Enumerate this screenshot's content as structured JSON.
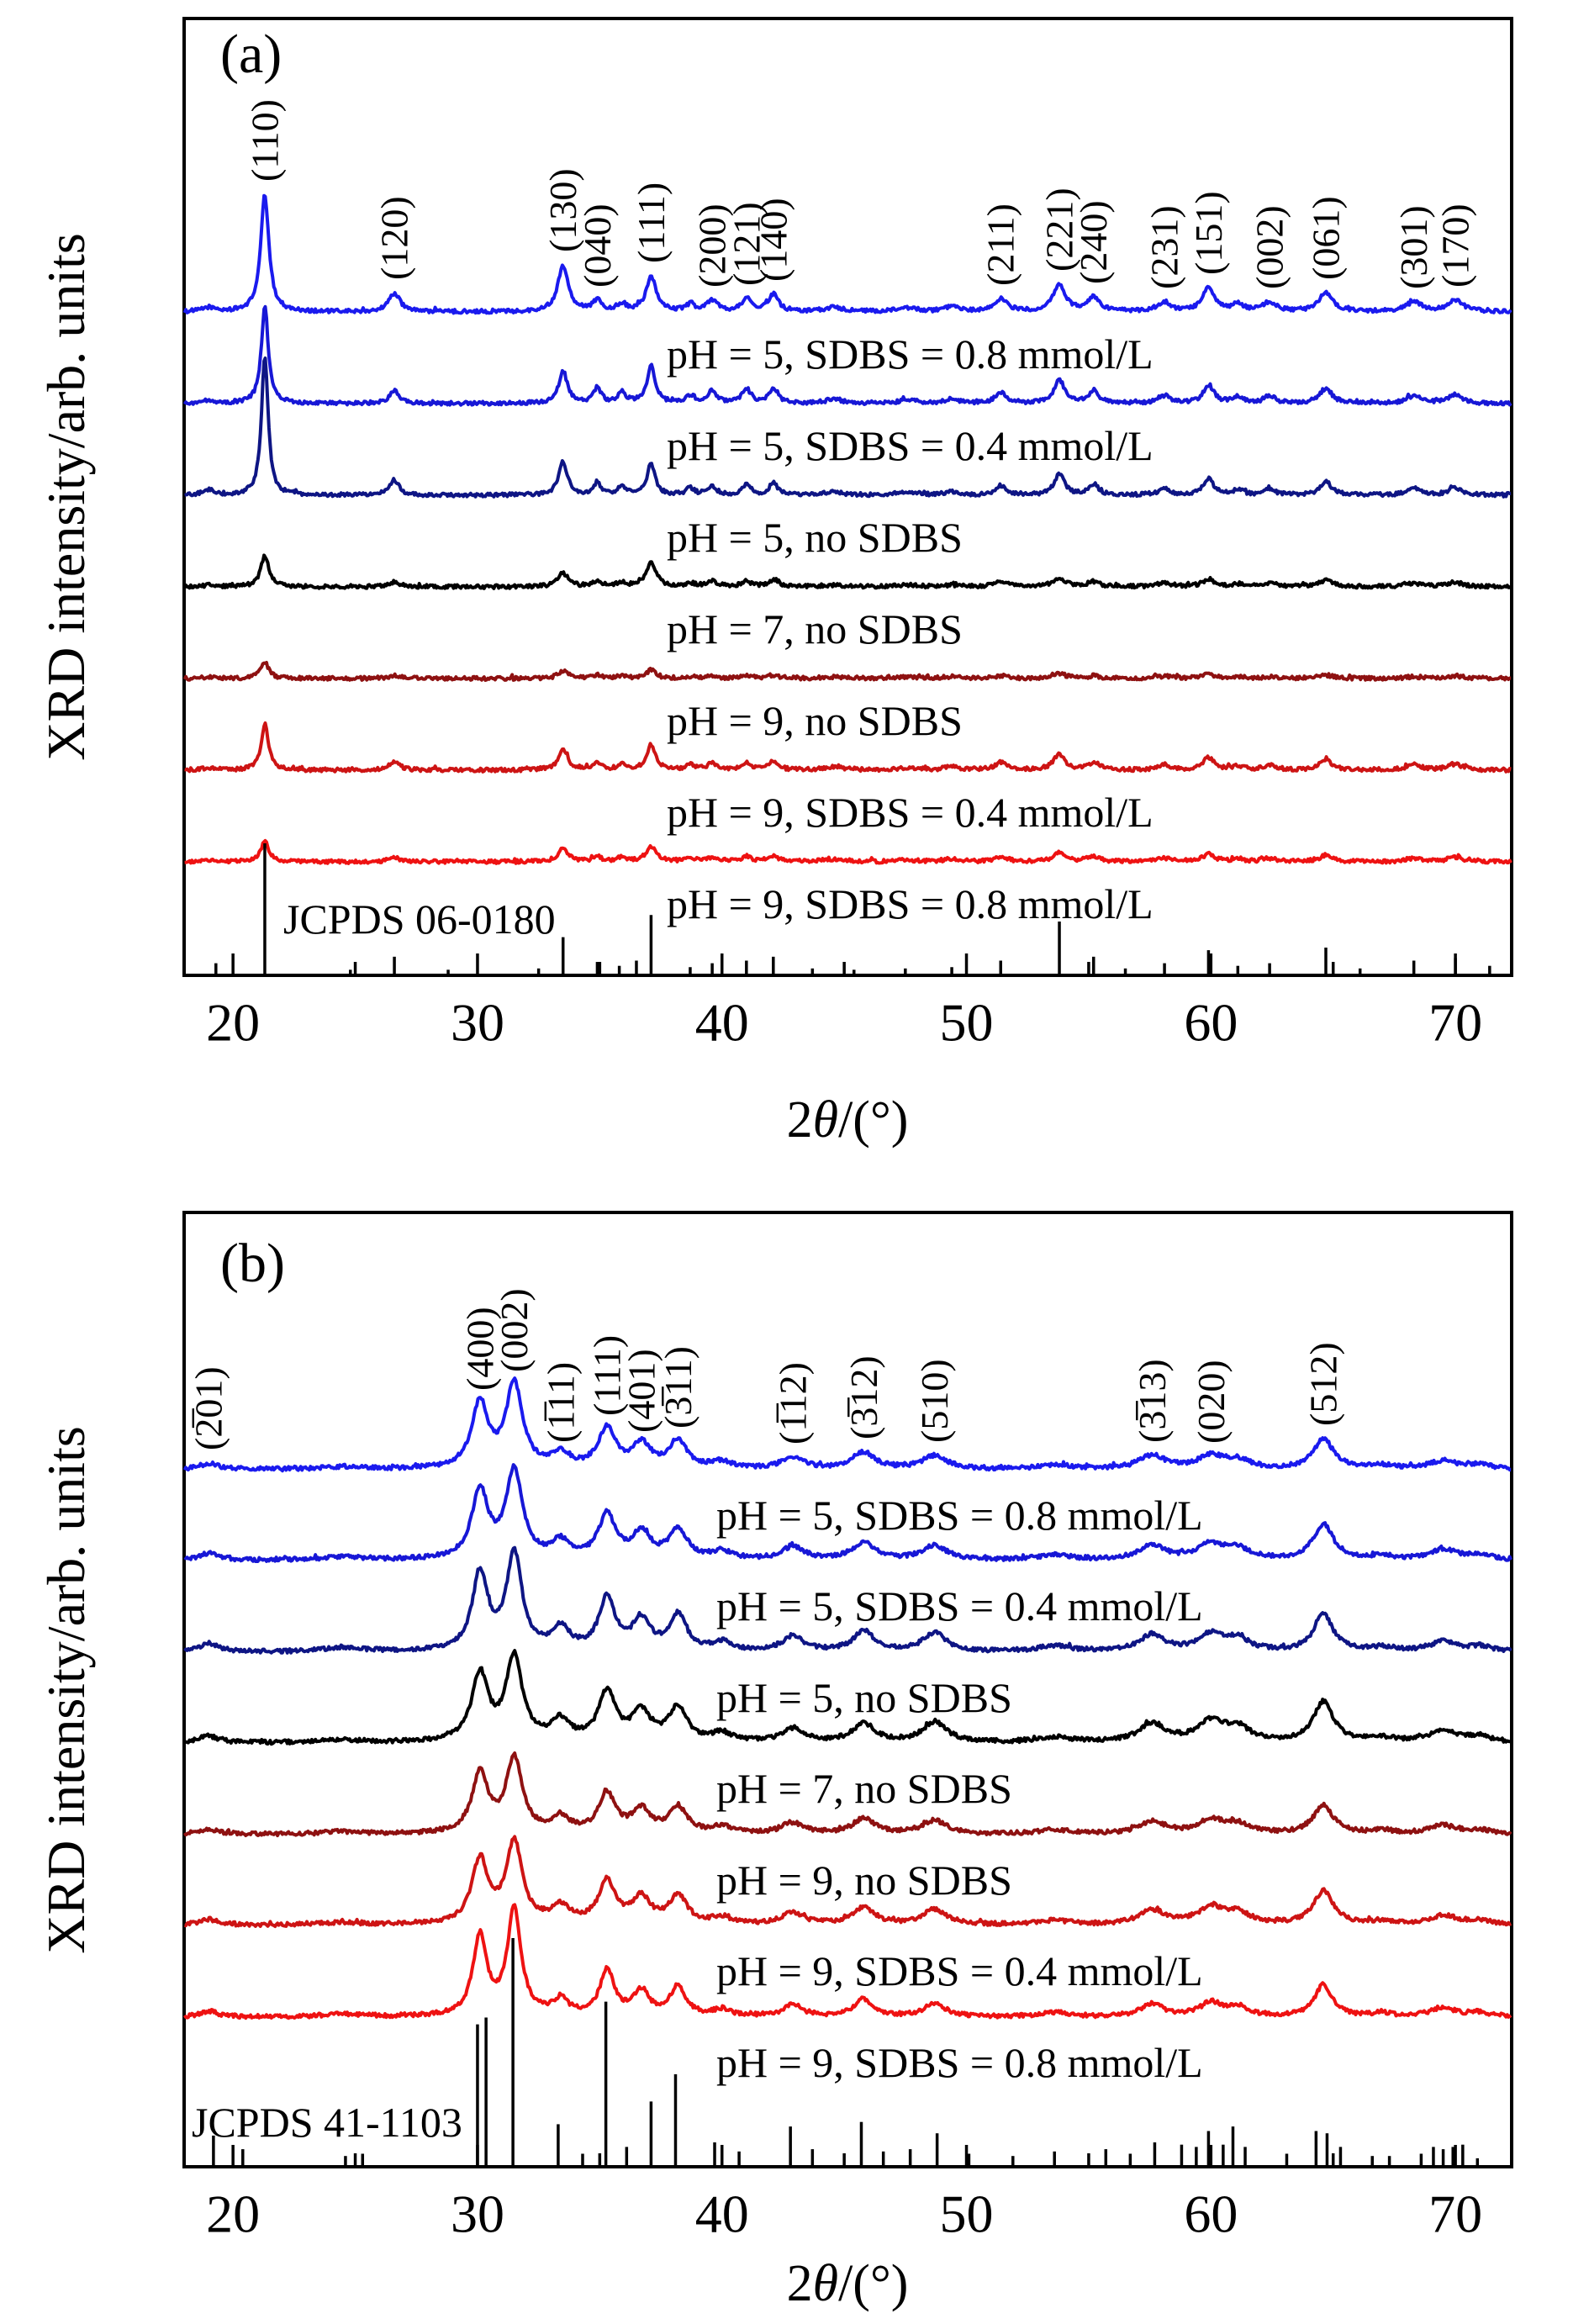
{
  "figure": {
    "ylabel": "XRD intensity/arb. units",
    "xlabel": "2θ/(°)",
    "xlabel_parts": {
      "pre": "2",
      "theta": "θ",
      "post": "/(°)"
    }
  },
  "chart_data": [
    {
      "type": "line",
      "panel_label": "(a)",
      "jcpds_label": "JCPDS 06-0180",
      "xlabel": "2θ/(°)",
      "ylabel": "XRD intensity/arb. units",
      "xlim": [
        18,
        72.3
      ],
      "x_ticks": [
        20,
        30,
        40,
        50,
        60,
        70
      ],
      "x_minor_ticks": [
        25,
        35,
        45,
        55,
        65
      ],
      "legend_position": "labels-under-curves",
      "grid": false,
      "peaks": [
        {
          "two_theta": 19.0,
          "hkl": "",
          "w": 0.3
        },
        {
          "two_theta": 21.3,
          "hkl": "(110)",
          "w": 0.2
        },
        {
          "two_theta": 26.6,
          "hkl": "(120)",
          "w": 0.28
        },
        {
          "two_theta": 33.5,
          "hkl": "(130)",
          "w": 0.26
        },
        {
          "two_theta": 34.9,
          "hkl": "(040)",
          "w": 0.22
        },
        {
          "two_theta": 35.9,
          "hkl": "",
          "w": 0.22
        },
        {
          "two_theta": 37.1,
          "hkl": "(111)",
          "w": 0.24
        },
        {
          "two_theta": 38.7,
          "hkl": "",
          "w": 0.25
        },
        {
          "two_theta": 39.6,
          "hkl": "(200)",
          "w": 0.25
        },
        {
          "two_theta": 41.0,
          "hkl": "(121)",
          "w": 0.25
        },
        {
          "two_theta": 42.1,
          "hkl": "(140)",
          "w": 0.25
        },
        {
          "two_theta": 44.6,
          "hkl": "",
          "w": 0.5
        },
        {
          "two_theta": 47.6,
          "hkl": "",
          "w": 0.5
        },
        {
          "two_theta": 49.4,
          "hkl": "",
          "w": 0.4
        },
        {
          "two_theta": 51.4,
          "hkl": "(211)",
          "w": 0.32
        },
        {
          "two_theta": 53.8,
          "hkl": "(221)",
          "w": 0.3
        },
        {
          "two_theta": 55.2,
          "hkl": "(240)",
          "w": 0.3
        },
        {
          "two_theta": 58.1,
          "hkl": "(231)",
          "w": 0.32
        },
        {
          "two_theta": 59.9,
          "hkl": "(151)",
          "w": 0.3
        },
        {
          "two_theta": 61.1,
          "hkl": "",
          "w": 0.3
        },
        {
          "two_theta": 62.4,
          "hkl": "(002)",
          "w": 0.32
        },
        {
          "two_theta": 64.7,
          "hkl": "(061)",
          "w": 0.35
        },
        {
          "two_theta": 68.3,
          "hkl": "(301)",
          "w": 0.4
        },
        {
          "two_theta": 70.0,
          "hkl": "(170)",
          "w": 0.4
        }
      ],
      "series": [
        {
          "label": "pH = 5, SDBS = 0.8 mmol/L",
          "color": "#1a1aee",
          "heights": [
            5,
            139,
            22,
            55,
            13,
            9,
            42,
            8,
            13,
            15,
            20,
            5,
            4,
            5,
            15,
            32,
            17,
            11,
            28,
            8,
            11,
            22,
            11,
            13
          ]
        },
        {
          "label": "pH = 5, SDBS = 0.4 mmol/L",
          "color": "#1717d6",
          "heights": [
            4,
            115,
            15,
            38,
            18,
            14,
            44,
            9,
            15,
            17,
            18,
            5,
            4,
            5,
            13,
            28,
            15,
            9,
            22,
            8,
            9,
            18,
            9,
            11
          ]
        },
        {
          "label": "pH = 5, no SDBS",
          "color": "#0e1584",
          "heights": [
            6,
            167,
            18,
            40,
            15,
            11,
            38,
            8,
            11,
            13,
            15,
            4,
            4,
            4,
            11,
            26,
            13,
            9,
            20,
            6,
            7,
            16,
            8,
            9
          ]
        },
        {
          "label": "pH = 7, no SDBS",
          "color": "#000000",
          "heights": [
            2,
            37,
            6,
            16,
            6,
            5,
            30,
            4,
            6,
            6,
            8,
            2,
            2,
            2,
            6,
            11,
            6,
            5,
            9,
            3,
            4,
            8,
            4,
            5
          ]
        },
        {
          "label": "pH = 9, no SDBS",
          "color": "#8e1111",
          "heights": [
            2,
            19,
            4,
            8,
            4,
            3,
            10,
            2,
            3,
            3,
            4,
            2,
            2,
            2,
            3,
            6,
            3,
            3,
            5,
            2,
            2,
            4,
            2,
            3
          ]
        },
        {
          "label": "pH = 9, SDBS = 0.4 mmol/L",
          "color": "#cd1414",
          "heights": [
            3,
            55,
            10,
            24,
            9,
            7,
            30,
            6,
            8,
            9,
            11,
            4,
            3,
            4,
            9,
            19,
            9,
            7,
            15,
            5,
            6,
            12,
            6,
            7
          ]
        },
        {
          "label": "pH = 9, SDBS = 0.8 mmol/L",
          "color": "#ee1212",
          "heights": [
            2,
            24,
            5,
            15,
            6,
            5,
            18,
            4,
            5,
            6,
            7,
            3,
            2,
            3,
            6,
            11,
            6,
            4,
            9,
            3,
            4,
            7,
            4,
            5
          ]
        }
      ],
      "jcpds_sticks": [
        [
          19.3,
          8
        ],
        [
          21.3,
          100
        ],
        [
          24.8,
          3
        ],
        [
          26.6,
          13
        ],
        [
          28.8,
          3
        ],
        [
          32.5,
          4
        ],
        [
          33.5,
          28
        ],
        [
          34.9,
          9
        ],
        [
          35.8,
          6
        ],
        [
          36.5,
          10
        ],
        [
          37.1,
          45
        ],
        [
          38.7,
          5
        ],
        [
          39.6,
          8
        ],
        [
          41.0,
          10
        ],
        [
          42.1,
          13
        ],
        [
          43.7,
          4
        ],
        [
          45.4,
          3
        ],
        [
          47.5,
          4
        ],
        [
          49.4,
          5
        ],
        [
          51.4,
          10
        ],
        [
          53.8,
          40
        ],
        [
          55.2,
          13
        ],
        [
          56.5,
          4
        ],
        [
          58.1,
          8
        ],
        [
          59.9,
          18
        ],
        [
          61.1,
          6
        ],
        [
          62.4,
          8
        ],
        [
          64.7,
          20
        ],
        [
          66.1,
          4
        ],
        [
          68.3,
          10
        ],
        [
          70.0,
          12
        ],
        [
          71.4,
          6
        ]
      ]
    },
    {
      "type": "line",
      "panel_label": "(b)",
      "jcpds_label": "JCPDS 41-1103",
      "xlabel": "2θ/(°)",
      "ylabel": "XRD intensity/arb. units",
      "xlim": [
        18,
        72.3
      ],
      "x_ticks": [
        20,
        30,
        40,
        50,
        60,
        70
      ],
      "x_minor_ticks": [
        25,
        35,
        45,
        55,
        65
      ],
      "legend_position": "labels-under-curves",
      "grid": false,
      "peaks": [
        {
          "two_theta": 19.0,
          "hkl": "(2̅01)",
          "w": 0.5
        },
        {
          "two_theta": 24.5,
          "hkl": "",
          "w": 1.0
        },
        {
          "two_theta": 30.1,
          "hkl": "(400)",
          "w": 0.4
        },
        {
          "two_theta": 31.5,
          "hkl": "(002)",
          "w": 0.4
        },
        {
          "two_theta": 33.4,
          "hkl": "(1̅11)",
          "w": 0.45
        },
        {
          "two_theta": 35.3,
          "hkl": "(111)",
          "w": 0.42
        },
        {
          "two_theta": 36.7,
          "hkl": "(401)",
          "w": 0.45
        },
        {
          "two_theta": 38.2,
          "hkl": "(3̅11)",
          "w": 0.45
        },
        {
          "two_theta": 40.0,
          "hkl": "",
          "w": 0.5
        },
        {
          "two_theta": 42.9,
          "hkl": "(1̅12)",
          "w": 0.55
        },
        {
          "two_theta": 45.8,
          "hkl": "(3̅12)",
          "w": 0.55
        },
        {
          "two_theta": 48.7,
          "hkl": "(510)",
          "w": 0.6
        },
        {
          "two_theta": 53.6,
          "hkl": "",
          "w": 0.8
        },
        {
          "two_theta": 57.6,
          "hkl": "(3̅13)",
          "w": 0.65
        },
        {
          "two_theta": 60.0,
          "hkl": "(020)",
          "w": 0.65
        },
        {
          "two_theta": 61.1,
          "hkl": "",
          "w": 0.6
        },
        {
          "two_theta": 64.6,
          "hkl": "(512)",
          "w": 0.5
        },
        {
          "two_theta": 67.0,
          "hkl": "",
          "w": 0.6
        },
        {
          "two_theta": 69.5,
          "hkl": "",
          "w": 0.7
        },
        {
          "two_theta": 71.0,
          "hkl": "",
          "w": 0.6
        }
      ],
      "series": [
        {
          "label": "pH = 5, SDBS = 0.8 mmol/L",
          "color": "#1a1aee",
          "heights": [
            7,
            3,
            78,
            100,
            16,
            48,
            28,
            33,
            8,
            14,
            20,
            16,
            5,
            16,
            15,
            10,
            36,
            4,
            10,
            5
          ]
        },
        {
          "label": "pH = 5, SDBS = 0.4 mmol/L",
          "color": "#1717d6",
          "heights": [
            8,
            4,
            82,
            105,
            20,
            52,
            30,
            35,
            9,
            15,
            21,
            17,
            6,
            17,
            18,
            12,
            42,
            4,
            12,
            6
          ]
        },
        {
          "label": "pH = 5, no SDBS",
          "color": "#0e1584",
          "heights": [
            10,
            5,
            92,
            115,
            26,
            62,
            36,
            42,
            10,
            18,
            24,
            22,
            7,
            20,
            20,
            14,
            44,
            5,
            12,
            6
          ]
        },
        {
          "label": "pH = 7, no SDBS",
          "color": "#000000",
          "heights": [
            8,
            3,
            80,
            100,
            24,
            58,
            34,
            40,
            10,
            16,
            22,
            24,
            6,
            22,
            24,
            16,
            48,
            5,
            14,
            7
          ]
        },
        {
          "label": "pH = 9, no SDBS",
          "color": "#8e1111",
          "heights": [
            6,
            3,
            70,
            88,
            18,
            46,
            27,
            31,
            8,
            13,
            18,
            16,
            5,
            15,
            16,
            11,
            34,
            4,
            10,
            5
          ]
        },
        {
          "label": "pH = 9, SDBS = 0.4 mmol/L",
          "color": "#cd1414",
          "heights": [
            7,
            3,
            76,
            96,
            20,
            50,
            30,
            33,
            8,
            14,
            20,
            18,
            5,
            17,
            20,
            13,
            40,
            4,
            11,
            5
          ]
        },
        {
          "label": "pH = 9, SDBS = 0.8 mmol/L",
          "color": "#ee1212",
          "heights": [
            7,
            3,
            95,
            125,
            18,
            54,
            29,
            35,
            8,
            14,
            20,
            16,
            5,
            15,
            16,
            11,
            38,
            4,
            11,
            5
          ]
        }
      ],
      "jcpds_sticks": [
        [
          19.2,
          13
        ],
        [
          20.4,
          7
        ],
        [
          24.6,
          4
        ],
        [
          25.3,
          5
        ],
        [
          30.0,
          62
        ],
        [
          30.35,
          65
        ],
        [
          31.45,
          100
        ],
        [
          33.3,
          18
        ],
        [
          34.3,
          5
        ],
        [
          35.25,
          72
        ],
        [
          36.1,
          8
        ],
        [
          37.1,
          28
        ],
        [
          38.1,
          40
        ],
        [
          39.7,
          10
        ],
        [
          40.7,
          6
        ],
        [
          42.8,
          17
        ],
        [
          43.7,
          7
        ],
        [
          45.7,
          19
        ],
        [
          46.6,
          6
        ],
        [
          47.7,
          7
        ],
        [
          48.8,
          14
        ],
        [
          50.1,
          5
        ],
        [
          51.9,
          4
        ],
        [
          53.6,
          6
        ],
        [
          55.7,
          7
        ],
        [
          56.7,
          5
        ],
        [
          57.7,
          10
        ],
        [
          58.8,
          9
        ],
        [
          59.4,
          8
        ],
        [
          59.9,
          15
        ],
        [
          60.5,
          9
        ],
        [
          60.9,
          17
        ],
        [
          61.4,
          8
        ],
        [
          63.1,
          5
        ],
        [
          64.3,
          15
        ],
        [
          64.75,
          14
        ],
        [
          65.3,
          8
        ],
        [
          66.6,
          4
        ],
        [
          67.3,
          4
        ],
        [
          68.6,
          5
        ],
        [
          69.1,
          8
        ],
        [
          69.5,
          7
        ],
        [
          69.9,
          8
        ],
        [
          70.3,
          9
        ],
        [
          70.9,
          3
        ]
      ]
    }
  ]
}
